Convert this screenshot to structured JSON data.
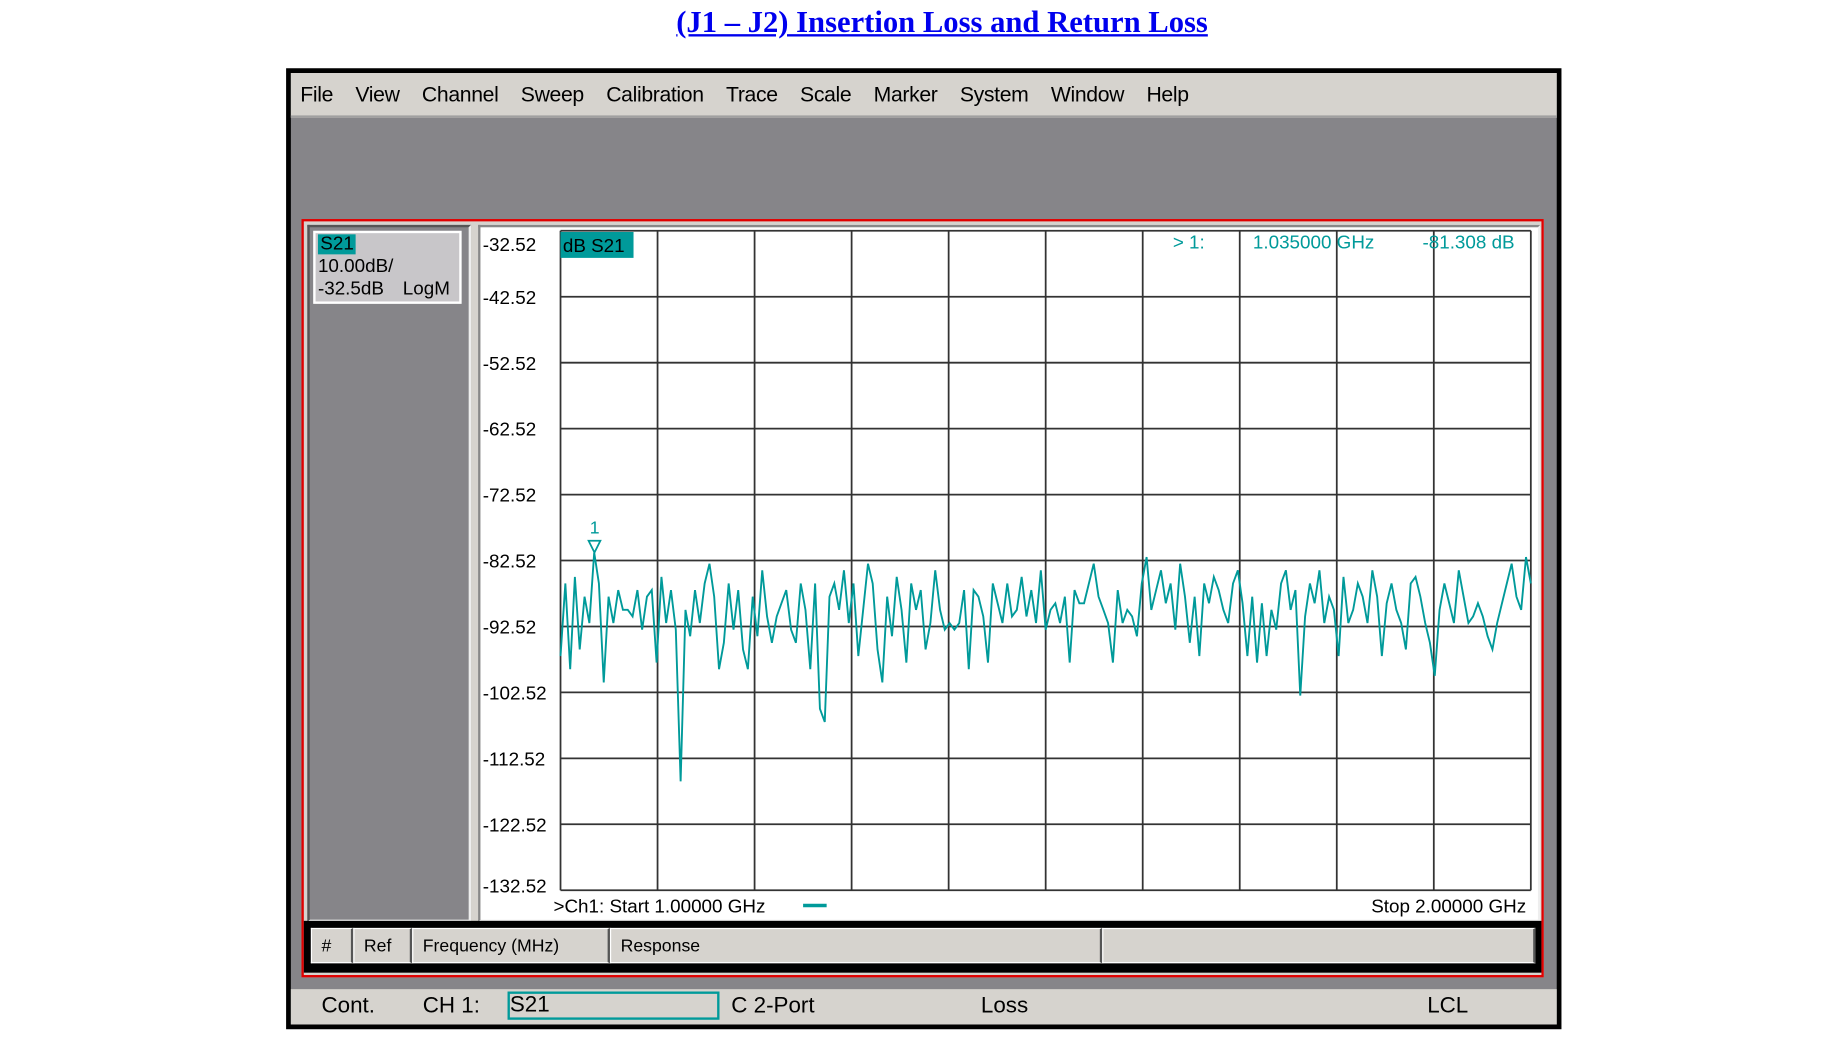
{
  "page_title": "(J1 – J2) Insertion Loss and Return Loss",
  "menu": [
    "File",
    "View",
    "Channel",
    "Sweep",
    "Calibration",
    "Trace",
    "Scale",
    "Marker",
    "System",
    "Window",
    "Help"
  ],
  "trace_box": {
    "name": "S21",
    "scale": "10.00dB/",
    "ref": "-32.5dB",
    "format": "LogM"
  },
  "plot": {
    "trace_label": "dB S21",
    "marker_readout": {
      "id": "> 1:",
      "freq": "1.035000 GHz",
      "value": "-81.308 dB"
    },
    "marker_label": "1",
    "start": ">Ch1: Start  1.00000 GHz",
    "stop": "Stop  2.00000 GHz"
  },
  "marker_table": {
    "columns": [
      "#",
      "Ref",
      "Frequency (MHz)",
      "Response",
      ""
    ]
  },
  "status": {
    "mode": "Cont.",
    "channel": "CH 1:",
    "param": "S21",
    "cal": "C  2-Port",
    "note": "Loss",
    "lcl": "LCL"
  },
  "colors": {
    "trace": "#009a9a",
    "frame": "#e00000",
    "grid": "#333333"
  },
  "chart_data": {
    "type": "line",
    "title": "dB S21",
    "xlabel": "",
    "ylabel": "",
    "xlim": [
      1.0,
      2.0
    ],
    "ylim": [
      -132.52,
      -32.52
    ],
    "yticks": [
      "-32.52",
      "-42.52",
      "-52.52",
      "-62.52",
      "-72.52",
      "-82.52",
      "-92.52",
      "-102.52",
      "-112.52",
      "-122.52",
      "-132.52"
    ],
    "grid": true,
    "x_start_ghz": 1.0,
    "x_stop_ghz": 2.0,
    "marker": {
      "freq_ghz": 1.035,
      "value_db": -81.308
    },
    "values": [
      -97,
      -86,
      -99,
      -85,
      -96,
      -88,
      -92,
      -81.3,
      -86,
      -101,
      -88,
      -92,
      -87,
      -90,
      -90,
      -91,
      -87,
      -93,
      -88,
      -87,
      -98,
      -85,
      -92,
      -87,
      -93,
      -116,
      -90,
      -94,
      -87,
      -92,
      -86,
      -83,
      -88,
      -99,
      -95,
      -86,
      -93,
      -87,
      -96,
      -99,
      -88,
      -94,
      -84,
      -91,
      -95,
      -91,
      -89,
      -87,
      -93,
      -95,
      -86,
      -90,
      -99,
      -86,
      -105,
      -107,
      -88,
      -86,
      -90,
      -84,
      -92,
      -86,
      -97,
      -90,
      -83,
      -86,
      -96,
      -101,
      -88,
      -94,
      -85,
      -90,
      -98,
      -86,
      -90,
      -87,
      -96,
      -92,
      -84,
      -90,
      -93,
      -92,
      -93,
      -92,
      -87,
      -99,
      -87,
      -88,
      -91,
      -98,
      -86,
      -89,
      -92,
      -86,
      -91,
      -90,
      -85,
      -91,
      -87,
      -92,
      -84,
      -93,
      -90,
      -89,
      -92,
      -88,
      -98,
      -87,
      -89,
      -89,
      -86,
      -83,
      -88,
      -90,
      -92,
      -98,
      -87,
      -92,
      -90,
      -91,
      -94,
      -86,
      -82,
      -90,
      -87,
      -84,
      -89,
      -86,
      -93,
      -83,
      -88,
      -95,
      -88,
      -97,
      -86,
      -89,
      -85,
      -87,
      -90,
      -92,
      -86,
      -84,
      -89,
      -97,
      -88,
      -98,
      -89,
      -97,
      -90,
      -93,
      -86,
      -84,
      -90,
      -87,
      -103,
      -91,
      -86,
      -89,
      -84,
      -92,
      -88,
      -90,
      -97,
      -85,
      -92,
      -90,
      -86,
      -88,
      -92,
      -84,
      -88,
      -97,
      -89,
      -86,
      -90,
      -92,
      -96,
      -86,
      -85,
      -88,
      -92,
      -95,
      -100,
      -90,
      -86,
      -89,
      -92,
      -84,
      -88,
      -92,
      -91,
      -89,
      -91,
      -94,
      -96,
      -92,
      -89,
      -86,
      -83,
      -88,
      -90,
      -82,
      -86
    ]
  }
}
